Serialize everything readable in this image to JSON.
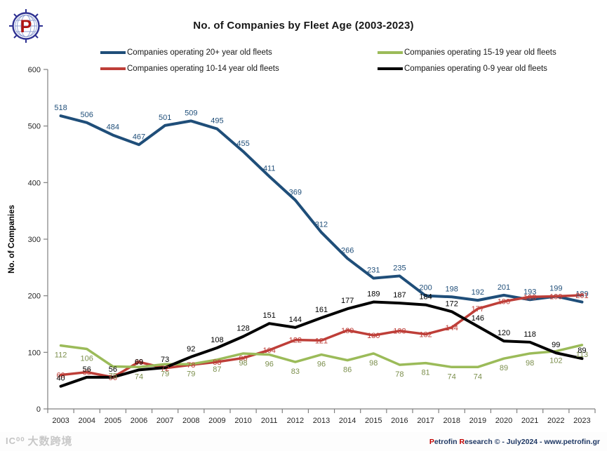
{
  "page": {
    "logo_letter": "P",
    "watermark": "大数跨境",
    "watermark_glyph": "IC⁰⁰",
    "footer": {
      "brand_initial": "P",
      "brand_rest": "etrofin ",
      "research_initial": "R",
      "research_rest": "esearch ",
      "suffix": "© - July2024 - www.petrofin.gr"
    }
  },
  "chart_data": {
    "type": "line",
    "title": "No. of Companies by Fleet Age (2003-2023)",
    "xlabel": "",
    "ylabel": "No. of Companies",
    "ylim": [
      0,
      600
    ],
    "yticks": [
      0,
      100,
      200,
      300,
      400,
      500,
      600
    ],
    "grid": false,
    "legend_position": "top",
    "categories": [
      "2003",
      "2004",
      "2005",
      "2006",
      "2007",
      "2008",
      "2009",
      "2010",
      "2011",
      "2012",
      "2013",
      "2014",
      "2015",
      "2016",
      "2017",
      "2018",
      "2019",
      "2020",
      "2021",
      "2022",
      "2023"
    ],
    "series": [
      {
        "id": "fleet-20plus",
        "name": "Companies operating  20+ year old fleets",
        "color": "#1F4E79",
        "label_color": "#1F4E79",
        "label_position": "above",
        "line_width": 4,
        "values": [
          518,
          506,
          484,
          467,
          501,
          509,
          495,
          455,
          411,
          369,
          312,
          266,
          231,
          235,
          200,
          198,
          192,
          201,
          193,
          199,
          189
        ]
      },
      {
        "id": "fleet-10-14",
        "name": "Companies operating 10-14 year old fleets",
        "color": "#BE3E38",
        "label_color": "#BE3E38",
        "label_position": "center",
        "line_width": 3.5,
        "values": [
          60,
          65,
          56,
          83,
          72,
          78,
          83,
          90,
          104,
          122,
          121,
          139,
          130,
          138,
          132,
          144,
          177,
          190,
          198,
          199,
          201
        ]
      },
      {
        "id": "fleet-15-19",
        "name": "Companies operating 15-19 year old fleets",
        "color": "#9BBB59",
        "label_color": "#7C8F4D",
        "label_position": "below",
        "line_width": 3.5,
        "values": [
          112,
          106,
          75,
          74,
          79,
          79,
          87,
          98,
          96,
          83,
          96,
          86,
          98,
          78,
          81,
          74,
          74,
          89,
          98,
          102,
          113
        ]
      },
      {
        "id": "fleet-0-9",
        "name": "Companies operating 0-9 year old fleets",
        "color": "#000000",
        "label_color": "#000000",
        "label_position": "above",
        "line_width": 4,
        "values": [
          40,
          56,
          56,
          69,
          73,
          92,
          108,
          128,
          151,
          144,
          161,
          177,
          189,
          187,
          184,
          172,
          146,
          120,
          118,
          99,
          89
        ]
      }
    ],
    "legend_columns": [
      [
        0,
        1
      ],
      [
        2,
        3
      ]
    ]
  }
}
